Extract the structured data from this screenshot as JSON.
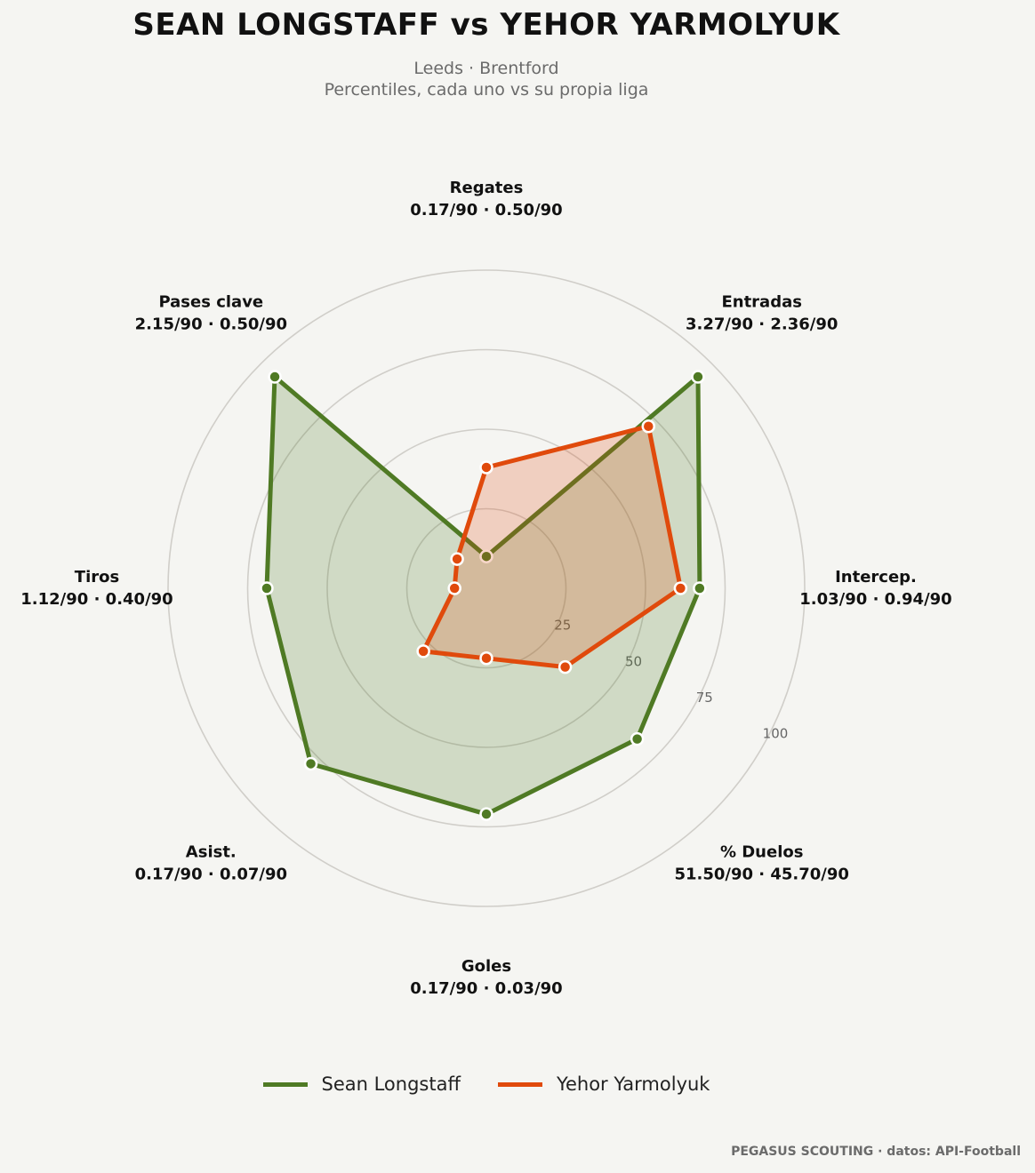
{
  "header": {
    "title": "SEAN LONGSTAFF  vs  YEHOR YARMOLYUK",
    "subtitle_line1": "Leeds · Brentford",
    "subtitle_line2": "Percentiles, cada uno vs su propia liga"
  },
  "footer": {
    "credit": "PEGASUS SCOUTING · datos: API-Football"
  },
  "colors": {
    "series1": "#4f7a24",
    "series2": "#e04a0c",
    "grid": "#d0cec9",
    "background": "#f5f5f2"
  },
  "chart_data": {
    "type": "radar",
    "axes": [
      {
        "label": "Regates",
        "values_label": "0.17/90 · 0.50/90"
      },
      {
        "label": "Entradas",
        "values_label": "3.27/90 · 2.36/90"
      },
      {
        "label": "Intercep.",
        "values_label": "1.03/90 · 0.94/90"
      },
      {
        "label": "% Duelos",
        "values_label": "51.50/90 · 45.70/90"
      },
      {
        "label": "Goles",
        "values_label": "0.17/90 · 0.03/90"
      },
      {
        "label": "Asist.",
        "values_label": "0.17/90 · 0.07/90"
      },
      {
        "label": "Tiros",
        "values_label": "1.12/90 · 0.40/90"
      },
      {
        "label": "Pases clave",
        "values_label": "2.15/90 · 0.50/90"
      }
    ],
    "r_ticks": [
      "25",
      "50",
      "75",
      "100"
    ],
    "r_range": [
      0,
      100
    ],
    "series": [
      {
        "name": "Sean Longstaff",
        "values": [
          10,
          94,
          67,
          67,
          71,
          78,
          69,
          94
        ]
      },
      {
        "name": "Yehor Yarmolyuk",
        "values": [
          38,
          72,
          61,
          35,
          22,
          28,
          10,
          13
        ]
      }
    ],
    "legend_position": "bottom-center"
  }
}
